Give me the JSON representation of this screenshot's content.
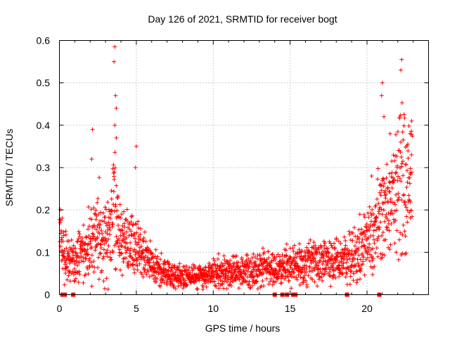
{
  "chart_data": {
    "type": "scatter",
    "title": "Day 126 of 2021, SRMTID for receiver bogt",
    "xlabel": "GPS time / hours",
    "ylabel": "SRMTID / TECUs",
    "xlim": [
      0,
      24
    ],
    "ylim": [
      0,
      0.6
    ],
    "xticks": [
      0,
      5,
      10,
      15,
      20
    ],
    "xtick_labels": [
      "0",
      "5",
      "10",
      "15",
      "20"
    ],
    "yticks": [
      0,
      0.1,
      0.2,
      0.3,
      0.4,
      0.5,
      0.6
    ],
    "ytick_labels": [
      "0",
      "0.1",
      "0.2",
      "0.3",
      "0.4",
      "0.5",
      "0.6"
    ],
    "grid": true,
    "marker": "plus",
    "color": "#ff0000",
    "profile_x": [
      0,
      0.3,
      1,
      2,
      2.5,
      3.3,
      3.6,
      4,
      4.5,
      5,
      6,
      7,
      8,
      9,
      10,
      11,
      12,
      13,
      14,
      15,
      16,
      17,
      18,
      19,
      19.5,
      20,
      20.5,
      21,
      21.5,
      22,
      22.5,
      23
    ],
    "profile_y": [
      0.17,
      0.09,
      0.08,
      0.12,
      0.15,
      0.14,
      0.2,
      0.13,
      0.12,
      0.11,
      0.07,
      0.05,
      0.04,
      0.045,
      0.05,
      0.05,
      0.055,
      0.06,
      0.065,
      0.07,
      0.075,
      0.08,
      0.08,
      0.09,
      0.11,
      0.12,
      0.15,
      0.2,
      0.22,
      0.25,
      0.27,
      0.3
    ],
    "peaks": [
      {
        "x": 3.6,
        "y": 0.585
      },
      {
        "x": 3.55,
        "y": 0.55
      },
      {
        "x": 3.65,
        "y": 0.47
      },
      {
        "x": 3.7,
        "y": 0.44
      },
      {
        "x": 3.6,
        "y": 0.4
      },
      {
        "x": 3.7,
        "y": 0.37
      },
      {
        "x": 2.15,
        "y": 0.39
      },
      {
        "x": 2.1,
        "y": 0.32
      },
      {
        "x": 5.0,
        "y": 0.35
      },
      {
        "x": 4.95,
        "y": 0.3
      },
      {
        "x": 21.0,
        "y": 0.5
      },
      {
        "x": 20.95,
        "y": 0.47
      },
      {
        "x": 21.1,
        "y": 0.42
      },
      {
        "x": 22.25,
        "y": 0.555
      },
      {
        "x": 22.2,
        "y": 0.53
      },
      {
        "x": 22.9,
        "y": 0.41
      },
      {
        "x": 22.8,
        "y": 0.38
      },
      {
        "x": 21.5,
        "y": 0.38
      },
      {
        "x": 20.3,
        "y": 0.28
      }
    ],
    "zero_flags_x": [
      0.2,
      0.35,
      0.9,
      14.0,
      14.5,
      14.8,
      15.2,
      15.35,
      18.7,
      20.8
    ]
  }
}
